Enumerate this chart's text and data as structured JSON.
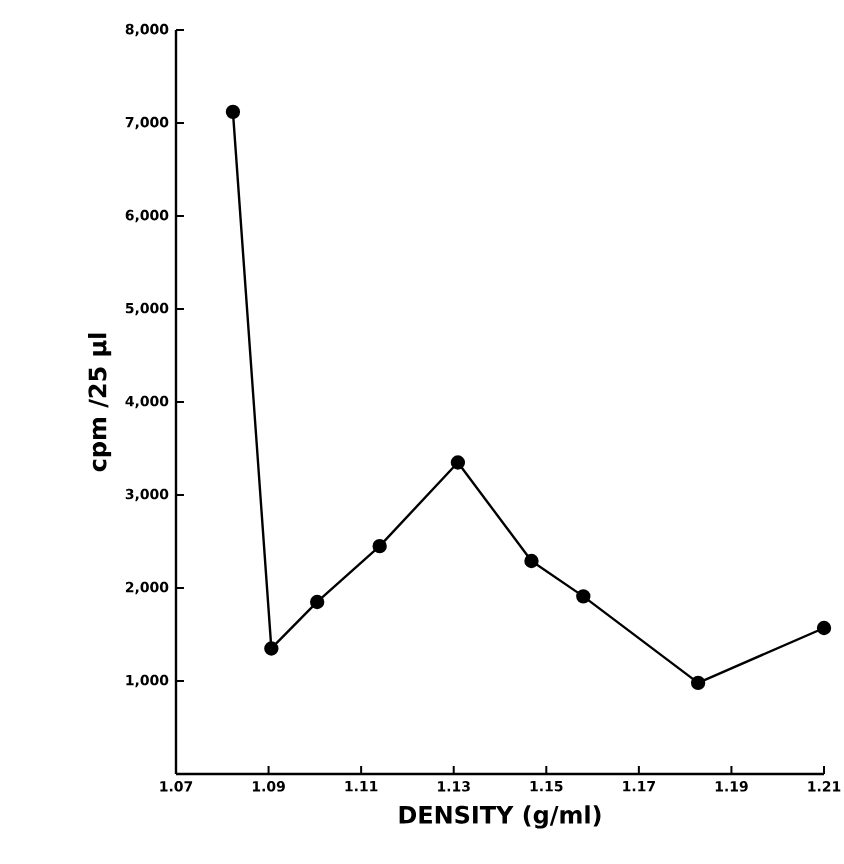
{
  "chart_data": {
    "type": "line",
    "xlabel": "DENSITY  (g/ml)",
    "ylabel": "cpm /25 μl",
    "x": [
      1.0823,
      1.0906,
      1.1005,
      1.114,
      1.1309,
      1.1468,
      1.158,
      1.1828,
      1.21
    ],
    "values": [
      7120,
      1350,
      1850,
      2450,
      3350,
      2290,
      1910,
      980,
      1570
    ],
    "color": "#000000",
    "marker": "circle",
    "line_style": "solid",
    "grid": false,
    "xlim": [
      1.07,
      1.21
    ],
    "ylim": [
      0,
      8000
    ],
    "xticks": [
      1.07,
      1.09,
      1.11,
      1.13,
      1.15,
      1.17,
      1.19,
      1.21
    ],
    "yticks": [
      {
        "value": 1000,
        "label": "1,000"
      },
      {
        "value": 2000,
        "label": "2,000"
      },
      {
        "value": 3000,
        "label": "3,000"
      },
      {
        "value": 4000,
        "label": "4,000"
      },
      {
        "value": 5000,
        "label": "5,000"
      },
      {
        "value": 6000,
        "label": "6,000"
      },
      {
        "value": 7000,
        "label": "7,000"
      },
      {
        "value": 8000,
        "label": "8,000"
      }
    ]
  }
}
